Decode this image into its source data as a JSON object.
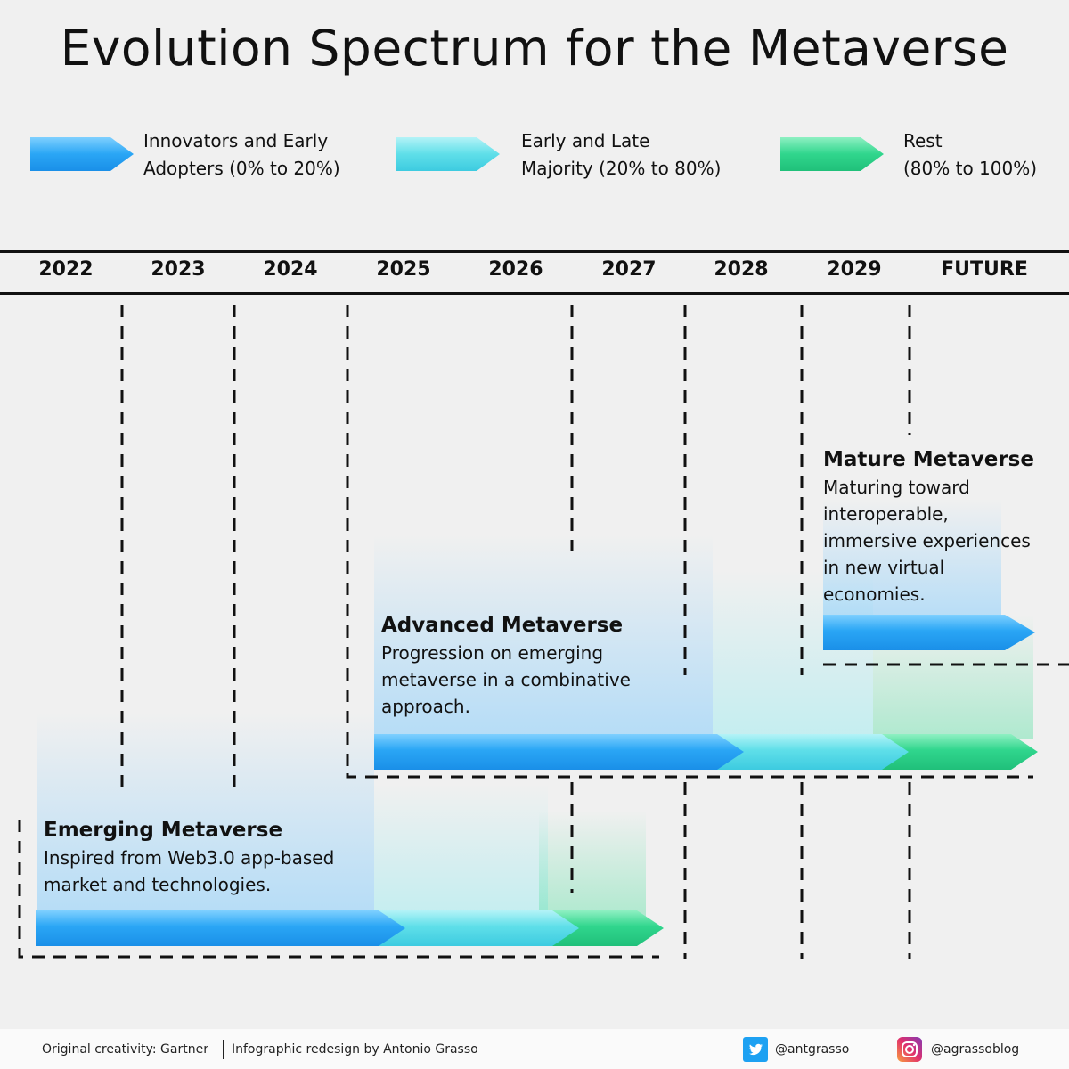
{
  "title": "Evolution Spectrum for the Metaverse",
  "legend": [
    {
      "label_line1": "Innovators and Early",
      "label_line2": "Adopters (0% to 20%)",
      "color": "#2aa6f5"
    },
    {
      "label_line1": "Early and Late",
      "label_line2": "Majority (20% to 80%)",
      "color": "#5fdfe9"
    },
    {
      "label_line1": "Rest",
      "label_line2": "(80% to 100%)",
      "color": "#30d68d"
    }
  ],
  "timeline": {
    "years": [
      "2022",
      "2023",
      "2024",
      "2025",
      "2026",
      "2027",
      "2028",
      "2029",
      "FUTURE"
    ]
  },
  "stages": [
    {
      "title": "Emerging Metaverse",
      "desc_line1": "Inspired from Web3.0 app-based",
      "desc_line2": "market and technologies."
    },
    {
      "title": "Advanced Metaverse",
      "desc_line1": "Progression on emerging",
      "desc_line2": "metaverse in a combinative",
      "desc_line3": "approach."
    },
    {
      "title": "Mature Metaverse",
      "desc_line1": "Maturing toward",
      "desc_line2": "interoperable,",
      "desc_line3": "immersive experiences",
      "desc_line4": "in new virtual",
      "desc_line5": "economies."
    }
  ],
  "footer": {
    "credit_left": "Original creativity: Gartner",
    "credit_right": "Infographic redesign by Antonio Grasso",
    "twitter_handle": "@antgrasso",
    "instagram_handle": "@agrassoblog",
    "icons": [
      "twitter-icon",
      "instagram-icon"
    ]
  },
  "colors": {
    "innovators": "#2aa6f5",
    "majority": "#5fdfe9",
    "rest": "#30d68d"
  }
}
